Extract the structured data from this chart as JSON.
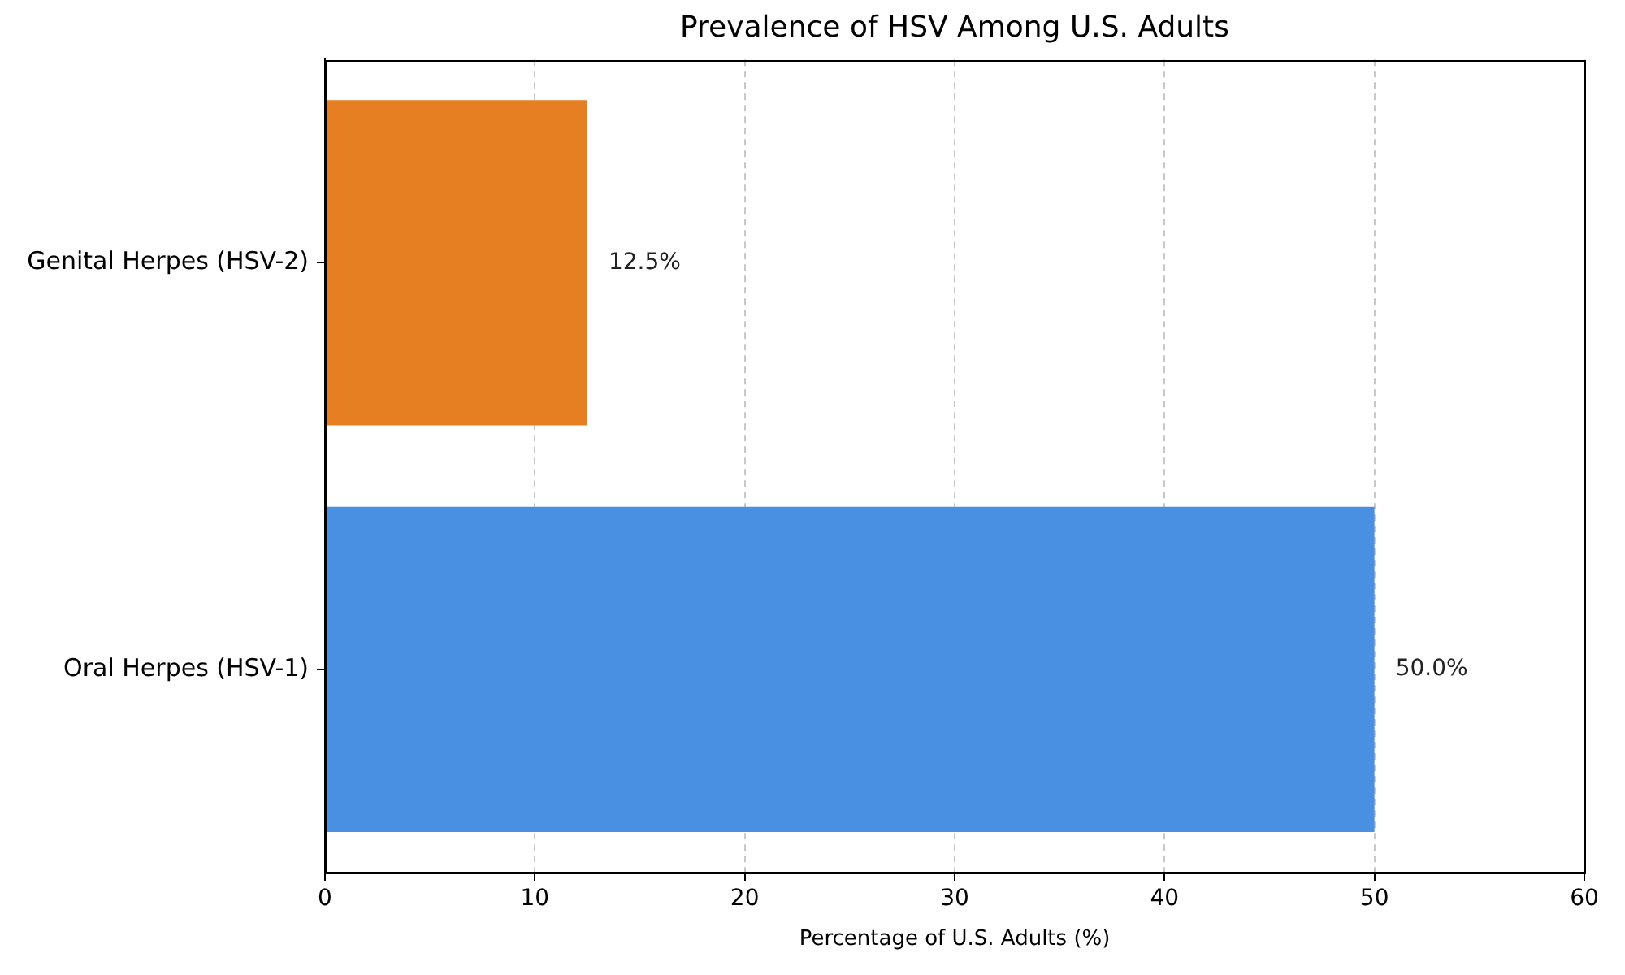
{
  "chart_data": {
    "type": "bar",
    "orientation": "horizontal",
    "title": "Prevalence of HSV Among U.S. Adults",
    "xlabel": "Percentage of U.S. Adults (%)",
    "categories": [
      "Genital Herpes (HSV-2)",
      "Oral Herpes (HSV-1)"
    ],
    "values": [
      12.5,
      50.0
    ],
    "colors": [
      "#e67e22",
      "#4a90e2"
    ],
    "value_labels": [
      "12.5%",
      "50.0%"
    ],
    "xlim": [
      0,
      60
    ],
    "xticks": [
      0,
      10,
      20,
      30,
      40,
      50,
      60
    ],
    "grid": "x"
  }
}
